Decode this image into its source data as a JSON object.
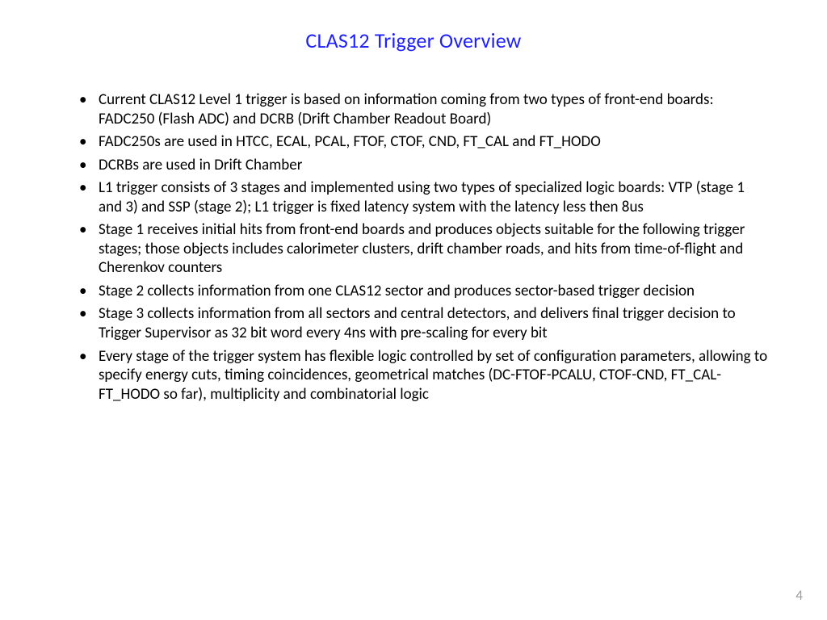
{
  "title": {
    "text": "CLAS12 Trigger Overview",
    "color": "#1f20ff",
    "fontsize": 26
  },
  "bullets": [
    "Current CLAS12 Level 1 trigger is based on information coming from two types of front-end boards: FADC250 (Flash ADC) and DCRB (Drift Chamber Readout Board)",
    "FADC250s are used in HTCC, ECAL, PCAL, FTOF, CTOF, CND, FT_CAL and FT_HODO",
    "DCRBs are used in Drift Chamber",
    "L1 trigger consists of 3 stages and implemented using two types of specialized logic boards: VTP (stage 1 and 3) and SSP (stage 2); L1 trigger is fixed latency system with the latency less then 8us",
    "Stage 1 receives initial hits from front-end boards and produces objects suitable for the following trigger stages; those objects includes calorimeter clusters, drift chamber roads, and hits from time-of-flight and Cherenkov counters",
    "Stage 2 collects information from one CLAS12 sector and produces sector-based trigger decision",
    "Stage 3 collects information from all sectors and central detectors, and delivers final trigger decision to Trigger Supervisor as 32 bit word every 4ns with pre-scaling for every bit",
    "Every stage of the trigger system has flexible logic controlled by set of configuration parameters, allowing to specify energy cuts, timing coincidences, geometrical matches (DC-FTOF-PCALU, CTOF-CND, FT_CAL-FT_HODO so far), multiplicity and combinatorial logic"
  ],
  "body_text_color": "#000000",
  "body_fontsize": 19,
  "background_color": "#ffffff",
  "page_number": "4",
  "page_number_color": "#9c9c9c"
}
